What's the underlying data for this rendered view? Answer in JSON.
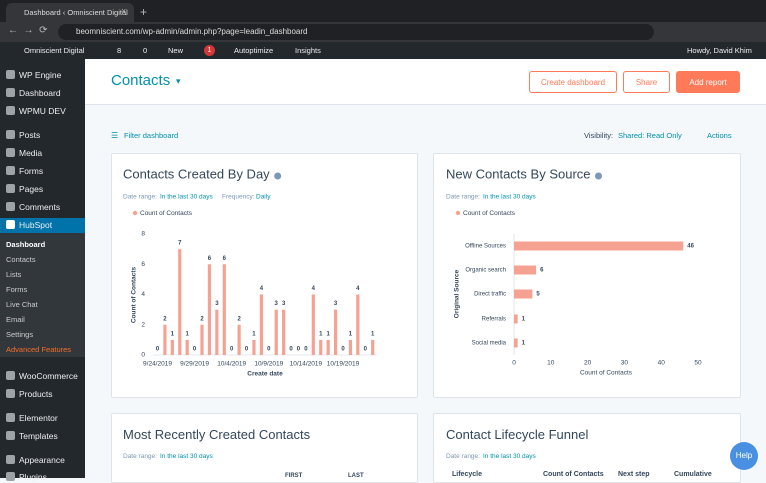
{
  "browser": {
    "tab_title": "Dashboard ‹ Omniscient Digital",
    "url": "beomniscient.com/wp-admin/admin.php?page=leadin_dashboard"
  },
  "admin_bar": {
    "site": "Omniscient Digital",
    "updates": "8",
    "comments": "0",
    "new": "New",
    "yoast_count": "1",
    "autoptimize": "Autoptimize",
    "insights": "Insights",
    "howdy": "Howdy, David Khim"
  },
  "sidebar": {
    "items": [
      "WP Engine",
      "Dashboard",
      "WPMU DEV",
      "Posts",
      "Media",
      "Forms",
      "Pages",
      "Comments",
      "HubSpot"
    ],
    "submenu": [
      "Dashboard",
      "Contacts",
      "Lists",
      "Forms",
      "Live Chat",
      "Email",
      "Settings",
      "Advanced Features"
    ],
    "items_after": [
      "WooCommerce",
      "Products",
      "Elementor",
      "Templates",
      "Appearance",
      "Plugins"
    ]
  },
  "header": {
    "title": "Contacts",
    "buttons": [
      "Create dashboard",
      "Share",
      "Add report"
    ]
  },
  "toolbar": {
    "filter": "Filter dashboard",
    "visibility_label": "Visibility:",
    "visibility_value": "Shared: Read Only",
    "actions": "Actions"
  },
  "chart_data": [
    {
      "type": "bar",
      "title": "Contacts Created By Day",
      "date_range_label": "Date range:",
      "date_range": "In the last 30 days",
      "frequency_label": "Frequency:",
      "frequency": "Daily",
      "categories": [
        "9/24/2019",
        null,
        null,
        null,
        null,
        "9/29/2019",
        null,
        null,
        null,
        null,
        "10/4/2019",
        null,
        null,
        null,
        null,
        "10/9/2019",
        null,
        null,
        null,
        null,
        "10/14/2019",
        null,
        null,
        null,
        null,
        "10/19/2019",
        null,
        null,
        null,
        null
      ],
      "series": [
        {
          "name": "Count of Contacts",
          "color": "#f5a293",
          "values": [
            0,
            2,
            1,
            7,
            1,
            0,
            2,
            6,
            3,
            6,
            0,
            2,
            0,
            1,
            4,
            0,
            3,
            3,
            0,
            0,
            0,
            4,
            1,
            1,
            3,
            0,
            1,
            4,
            0,
            1
          ]
        }
      ],
      "xlabel": "Create date",
      "ylabel": "Count of Contacts",
      "ylim": [
        0,
        8
      ],
      "yticks": [
        0,
        2,
        4,
        6,
        8
      ],
      "legend": "top-left"
    },
    {
      "type": "hbar",
      "title": "New Contacts By Source",
      "date_range_label": "Date range:",
      "date_range": "In the last 30 days",
      "categories": [
        "Offline Sources",
        "Organic search",
        "Direct traffic",
        "Referrals",
        "Social media"
      ],
      "series": [
        {
          "name": "Count of Contacts",
          "color": "#f5a293",
          "values": [
            46,
            6,
            5,
            1,
            1
          ]
        }
      ],
      "xlabel": "Count of Contacts",
      "ylabel": "Original Source",
      "xlim": [
        0,
        50
      ],
      "xticks": [
        0,
        10,
        20,
        30,
        40,
        50
      ],
      "legend": "top-left"
    }
  ],
  "cards": [
    {
      "title": "Most Recently Created Contacts",
      "date_range_label": "Date range:",
      "date_range": "In the last 30 days",
      "columns": [
        "FIRST",
        "LAST"
      ]
    },
    {
      "title": "Contact Lifecycle Funnel",
      "date_range_label": "Date range:",
      "date_range": "In the last 30 days",
      "columns": [
        "Lifecycle",
        "Count of Contacts",
        "Next step",
        "Cumulative"
      ]
    }
  ],
  "help": "Help"
}
